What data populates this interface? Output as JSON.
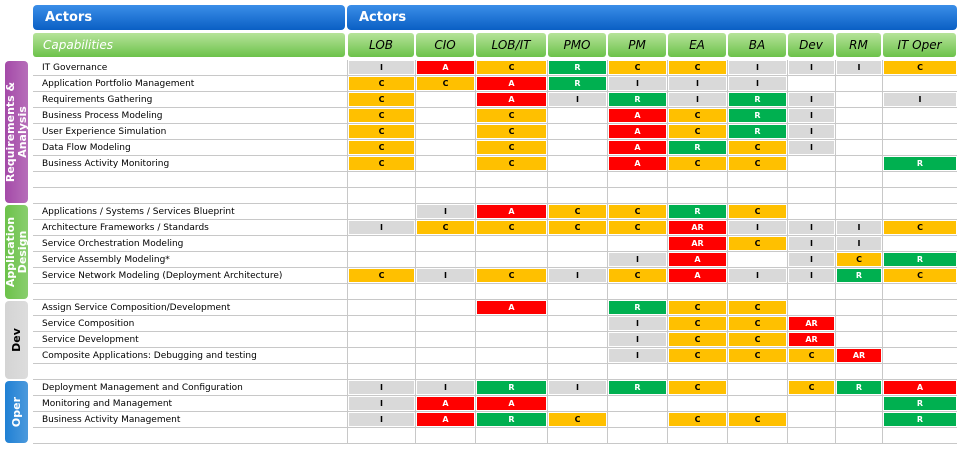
{
  "header": {
    "left_title": "Actors",
    "right_title": "Actors",
    "capabilities": "Capabilities",
    "columns": [
      "LOB",
      "CIO",
      "LOB/IT",
      "PMO",
      "PM",
      "EA",
      "BA",
      "Dev",
      "RM",
      "IT  Oper"
    ]
  },
  "cell_styles": {
    "I": {
      "fill": "#d9d9d9",
      "text": "#000000"
    },
    "C": {
      "fill": "#ffc000",
      "text": "#000000"
    },
    "R": {
      "fill": "#00b050",
      "text": "#ffffff"
    },
    "A": {
      "fill": "#ff0000",
      "text": "#ffffff"
    },
    "AR": {
      "fill": "#ff0000",
      "text": "#ffffff"
    }
  },
  "sections": [
    {
      "label": "Requirements & Analysis",
      "color": "#a44aa8",
      "text_color": "#ffffff",
      "rows": [
        {
          "capability": "IT Governance",
          "cells": [
            "I",
            "A",
            "C",
            "R",
            "C",
            "C",
            "I",
            "I",
            "I",
            "C"
          ]
        },
        {
          "capability": "Application Portfolio Management",
          "cells": [
            "C",
            "C",
            "A",
            "R",
            "I",
            "I",
            "I",
            null,
            null,
            null
          ]
        },
        {
          "capability": "Requirements Gathering",
          "cells": [
            "C",
            null,
            "A",
            "I",
            "R",
            "I",
            "R",
            "I",
            null,
            "I"
          ]
        },
        {
          "capability": "Business Process Modeling",
          "cells": [
            "C",
            null,
            "C",
            null,
            "A",
            "C",
            "R",
            "I",
            null,
            null
          ]
        },
        {
          "capability": "User Experience Simulation",
          "cells": [
            "C",
            null,
            "C",
            null,
            "A",
            "C",
            "R",
            "I",
            null,
            null
          ]
        },
        {
          "capability": "Data Flow Modeling",
          "cells": [
            "C",
            null,
            "C",
            null,
            "A",
            "R",
            "C",
            "I",
            null,
            null
          ]
        },
        {
          "capability": "Business Activity Monitoring",
          "cells": [
            "C",
            null,
            "C",
            null,
            "A",
            "C",
            "C",
            null,
            null,
            "R"
          ]
        },
        {
          "capability": null,
          "cells": [
            null,
            null,
            null,
            null,
            null,
            null,
            null,
            null,
            null,
            null
          ]
        },
        {
          "capability": null,
          "cells": [
            null,
            null,
            null,
            null,
            null,
            null,
            null,
            null,
            null,
            null
          ]
        }
      ]
    },
    {
      "label": "Application Design",
      "color": "#6cc24a",
      "text_color": "#ffffff",
      "rows": [
        {
          "capability": "Applications / Systems / Services Blueprint",
          "cells": [
            null,
            "I",
            "A",
            "C",
            "C",
            "R",
            "C",
            null,
            null,
            null
          ]
        },
        {
          "capability": "Architecture Frameworks / Standards",
          "cells": [
            "I",
            "C",
            "C",
            "C",
            "C",
            "AR",
            "I",
            "I",
            "I",
            "C"
          ]
        },
        {
          "capability": "Service Orchestration Modeling",
          "cells": [
            null,
            null,
            null,
            null,
            null,
            "AR",
            "C",
            "I",
            "I",
            null
          ]
        },
        {
          "capability": "Service Assembly Modeling*",
          "cells": [
            null,
            null,
            null,
            null,
            "I",
            "A",
            null,
            "I",
            "C",
            "R"
          ]
        },
        {
          "capability": "Service Network Modeling (Deployment Architecture)",
          "cells": [
            "C",
            "I",
            "C",
            "I",
            "C",
            "A",
            "I",
            "I",
            "R",
            "C"
          ]
        },
        {
          "capability": null,
          "cells": [
            null,
            null,
            null,
            null,
            null,
            null,
            null,
            null,
            null,
            null
          ]
        }
      ]
    },
    {
      "label": "Dev",
      "color": "#d4d4d4",
      "text_color": "#000000",
      "rows": [
        {
          "capability": "Assign Service Composition/Development",
          "cells": [
            null,
            null,
            "A",
            null,
            "R",
            "C",
            "C",
            null,
            null,
            null
          ]
        },
        {
          "capability": "Service Composition",
          "cells": [
            null,
            null,
            null,
            null,
            "I",
            "C",
            "C",
            "AR",
            null,
            null
          ]
        },
        {
          "capability": "Service Development",
          "cells": [
            null,
            null,
            null,
            null,
            "I",
            "C",
            "C",
            "AR",
            null,
            null
          ]
        },
        {
          "capability": "Composite Applications: Debugging and testing",
          "cells": [
            null,
            null,
            null,
            null,
            "I",
            "C",
            "C",
            "C",
            "AR",
            null
          ]
        },
        {
          "capability": null,
          "cells": [
            null,
            null,
            null,
            null,
            null,
            null,
            null,
            null,
            null,
            null
          ]
        }
      ]
    },
    {
      "label": "Oper",
      "color": "#1f80d4",
      "text_color": "#ffffff",
      "rows": [
        {
          "capability": "Deployment Management and Configuration",
          "cells": [
            "I",
            "I",
            "R",
            "I",
            "R",
            "C",
            null,
            "C",
            "R",
            "A"
          ]
        },
        {
          "capability": "Monitoring and Management",
          "cells": [
            "I",
            "A",
            "A",
            null,
            null,
            null,
            null,
            null,
            null,
            "R"
          ]
        },
        {
          "capability": "Business Activity Management",
          "cells": [
            "I",
            "A",
            "R",
            "C",
            null,
            "C",
            "C",
            null,
            null,
            "R"
          ]
        },
        {
          "capability": null,
          "cells": [
            null,
            null,
            null,
            null,
            null,
            null,
            null,
            null,
            null,
            null
          ]
        }
      ]
    }
  ]
}
